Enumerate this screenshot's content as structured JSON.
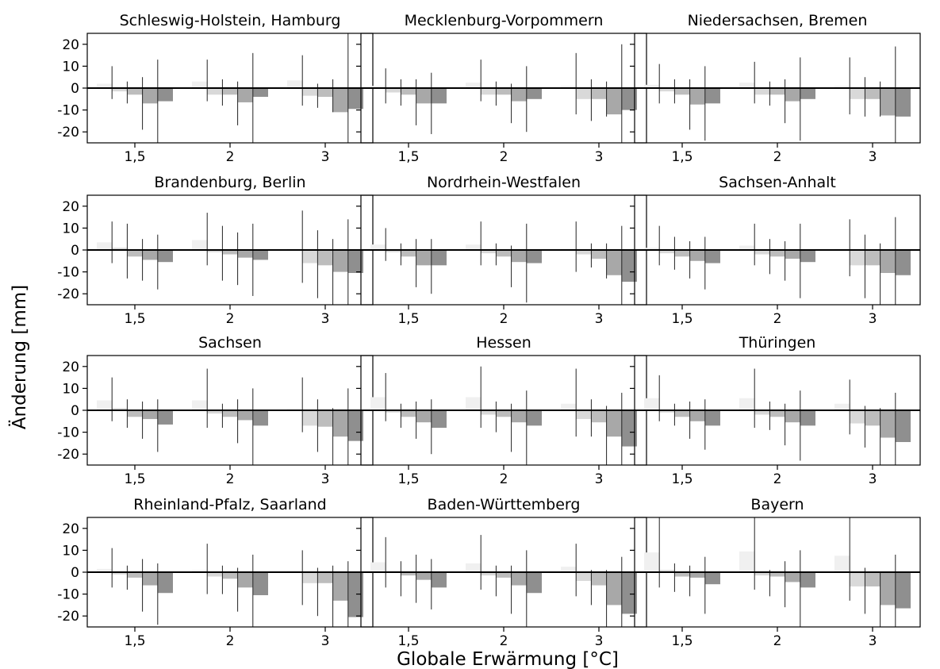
{
  "figure": {
    "xlabel": "Globale Erwärmung [°C]",
    "ylabel": "Änderung [mm]"
  },
  "style": {
    "bar_colors": [
      "#f0f0f0",
      "#d9d9d9",
      "#bdbdbd",
      "#a8a8a8",
      "#8f8f8f"
    ],
    "line_color": "#000000",
    "errorbar_color": "#222222"
  },
  "chart_data": {
    "type": "bar",
    "categories": [
      "1,5",
      "2",
      "3"
    ],
    "yticks": [
      20,
      10,
      0,
      -10,
      -20
    ],
    "ylim": [
      -25,
      25
    ],
    "grid": false,
    "legend": "none",
    "panels": [
      {
        "title": "Schleswig-Holstein, Hamburg",
        "values": [
          [
            2,
            -1.5,
            -3,
            -7,
            -6
          ],
          [
            3,
            -3,
            -3,
            -6.5,
            -4
          ],
          [
            3.5,
            -3.5,
            -4,
            -11,
            -9.5
          ]
        ],
        "errors": [
          [
            [
              -5,
              10
            ],
            [
              -7,
              3
            ],
            [
              -19,
              5
            ],
            [
              -25,
              13
            ]
          ],
          [
            [
              -6,
              13
            ],
            [
              -8,
              4
            ],
            [
              -17,
              3
            ],
            [
              -25,
              16
            ]
          ],
          [
            [
              -8,
              15
            ],
            [
              -9,
              2
            ],
            [
              -11,
              4
            ],
            [
              -25,
              25
            ]
          ]
        ]
      },
      {
        "title": "Mecklenburg-Vorpommern",
        "values": [
          [
            1,
            -2,
            -3,
            -7,
            -7
          ],
          [
            2.5,
            -3,
            -3,
            -6,
            -5
          ],
          [
            1,
            -5,
            -5,
            -12,
            -10
          ]
        ],
        "errors": [
          [
            [
              -7,
              9
            ],
            [
              -8,
              4
            ],
            [
              -17,
              4
            ],
            [
              -21,
              7
            ]
          ],
          [
            [
              -6,
              13
            ],
            [
              -8,
              3
            ],
            [
              -16,
              2
            ],
            [
              -20,
              10
            ]
          ],
          [
            [
              -12,
              16
            ],
            [
              -15,
              4
            ],
            [
              -13,
              3
            ],
            [
              -25,
              20
            ]
          ]
        ]
      },
      {
        "title": "Niedersachsen, Bremen",
        "values": [
          [
            1.5,
            -1.5,
            -3,
            -7.5,
            -7
          ],
          [
            2.5,
            -3,
            -3,
            -6,
            -5
          ],
          [
            1,
            -5,
            -5,
            -12.5,
            -13
          ]
        ],
        "errors": [
          [
            [
              -7,
              11
            ],
            [
              -7,
              4
            ],
            [
              -19,
              4
            ],
            [
              -24,
              10
            ]
          ],
          [
            [
              -7,
              12
            ],
            [
              -8,
              3
            ],
            [
              -16,
              4
            ],
            [
              -24,
              14
            ]
          ],
          [
            [
              -12,
              14
            ],
            [
              -13,
              5
            ],
            [
              -13,
              3
            ],
            [
              -25,
              19
            ]
          ]
        ]
      },
      {
        "title": "Brandenburg, Berlin",
        "values": [
          [
            3.5,
            1,
            -3,
            -4.5,
            -5.5
          ],
          [
            4.5,
            -1,
            -2,
            -3.5,
            -4.5
          ],
          [
            0.5,
            -6,
            -7,
            -10,
            -10.5
          ]
        ],
        "errors": [
          [
            [
              -6,
              13
            ],
            [
              -13,
              12
            ],
            [
              -14,
              5
            ],
            [
              -18,
              7
            ]
          ],
          [
            [
              -7,
              17
            ],
            [
              -14,
              11
            ],
            [
              -16,
              8
            ],
            [
              -21,
              12
            ]
          ],
          [
            [
              -15,
              18
            ],
            [
              -22,
              9
            ],
            [
              -25,
              5
            ],
            [
              -25,
              14
            ]
          ]
        ]
      },
      {
        "title": "Nordrhein-Westfalen",
        "values": [
          [
            2.5,
            -1,
            -3,
            -7,
            -7
          ],
          [
            2.5,
            -1.5,
            -3,
            -5.5,
            -6
          ],
          [
            0.5,
            -2,
            -4,
            -11.5,
            -14.5
          ]
        ],
        "errors": [
          [
            [
              -5,
              10
            ],
            [
              -7,
              3
            ],
            [
              -17,
              5
            ],
            [
              -20,
              5
            ]
          ],
          [
            [
              -7,
              13
            ],
            [
              -7,
              3
            ],
            [
              -17,
              2
            ],
            [
              -24,
              12
            ]
          ],
          [
            [
              -10,
              13
            ],
            [
              -8,
              3
            ],
            [
              -13,
              3
            ],
            [
              -25,
              11
            ]
          ]
        ]
      },
      {
        "title": "Sachsen-Anhalt",
        "values": [
          [
            1,
            -1.5,
            -3,
            -5,
            -6
          ],
          [
            2,
            -2,
            -3,
            -4,
            -5.5
          ],
          [
            0.5,
            -7,
            -7,
            -10.5,
            -11.5
          ]
        ],
        "errors": [
          [
            [
              -7,
              11
            ],
            [
              -9,
              6
            ],
            [
              -13,
              4
            ],
            [
              -18,
              6
            ]
          ],
          [
            [
              -7,
              12
            ],
            [
              -11,
              5
            ],
            [
              -14,
              4
            ],
            [
              -22,
              12
            ]
          ],
          [
            [
              -12,
              14
            ],
            [
              -22,
              7
            ],
            [
              -25,
              3
            ],
            [
              -25,
              15
            ]
          ]
        ]
      },
      {
        "title": "Sachsen",
        "values": [
          [
            4.5,
            1,
            -3,
            -4,
            -6.5
          ],
          [
            4.5,
            -1.5,
            -3,
            -4.5,
            -7
          ],
          [
            0.5,
            -7,
            -7.5,
            -12,
            -14
          ]
        ],
        "errors": [
          [
            [
              -5,
              15
            ],
            [
              -8,
              5
            ],
            [
              -13,
              4
            ],
            [
              -19,
              5
            ]
          ],
          [
            [
              -8,
              19
            ],
            [
              -8,
              3
            ],
            [
              -15,
              5
            ],
            [
              -25,
              10
            ]
          ],
          [
            [
              -10,
              15
            ],
            [
              -19,
              5
            ],
            [
              -25,
              1
            ],
            [
              -25,
              10
            ]
          ]
        ]
      },
      {
        "title": "Hessen",
        "values": [
          [
            6,
            -1,
            -3,
            -5.5,
            -8
          ],
          [
            6,
            -2,
            -3,
            -5.5,
            -7
          ],
          [
            3,
            -4,
            -5.5,
            -12,
            -16.5
          ]
        ],
        "errors": [
          [
            [
              -5,
              17
            ],
            [
              -8,
              3
            ],
            [
              -13,
              4
            ],
            [
              -20,
              5
            ]
          ],
          [
            [
              -8,
              20
            ],
            [
              -10,
              4
            ],
            [
              -19,
              3
            ],
            [
              -25,
              9
            ]
          ],
          [
            [
              -12,
              19
            ],
            [
              -12,
              5
            ],
            [
              -25,
              2
            ],
            [
              -25,
              8
            ]
          ]
        ]
      },
      {
        "title": "Thüringen",
        "values": [
          [
            5.5,
            -1,
            -3,
            -5,
            -7
          ],
          [
            5.5,
            -2,
            -3,
            -5.5,
            -7
          ],
          [
            3,
            -6,
            -7,
            -12.5,
            -14.5
          ]
        ],
        "errors": [
          [
            [
              -5,
              16
            ],
            [
              -7,
              3
            ],
            [
              -13,
              4
            ],
            [
              -18,
              5
            ]
          ],
          [
            [
              -8,
              19
            ],
            [
              -9,
              4
            ],
            [
              -16,
              3
            ],
            [
              -23,
              9
            ]
          ],
          [
            [
              -11,
              14
            ],
            [
              -17,
              2
            ],
            [
              -25,
              1
            ],
            [
              -25,
              8
            ]
          ]
        ]
      },
      {
        "title": "Rheinland-Pfalz, Saarland",
        "values": [
          [
            1.5,
            -1,
            -2.5,
            -6,
            -9.5
          ],
          [
            1,
            -2,
            -3,
            -7,
            -10.5
          ],
          [
            0.5,
            -5,
            -5,
            -13,
            -20.5
          ]
        ],
        "errors": [
          [
            [
              -7,
              11
            ],
            [
              -8,
              3
            ],
            [
              -18,
              6
            ],
            [
              -24,
              4
            ]
          ],
          [
            [
              -10,
              13
            ],
            [
              -10,
              3
            ],
            [
              -18,
              2
            ],
            [
              -25,
              8
            ]
          ],
          [
            [
              -15,
              10
            ],
            [
              -20,
              2
            ],
            [
              -25,
              3
            ],
            [
              -25,
              5
            ]
          ]
        ]
      },
      {
        "title": "Baden-Württemberg",
        "values": [
          [
            4.5,
            0.5,
            -1.5,
            -3.5,
            -7
          ],
          [
            4,
            -1.5,
            -2.5,
            -6,
            -9.5
          ],
          [
            2.5,
            -4,
            -6,
            -15,
            -19
          ]
        ],
        "errors": [
          [
            [
              -7,
              16
            ],
            [
              -11,
              5
            ],
            [
              -14,
              8
            ],
            [
              -17,
              6
            ]
          ],
          [
            [
              -8,
              17
            ],
            [
              -11,
              3
            ],
            [
              -19,
              3
            ],
            [
              -25,
              10
            ]
          ],
          [
            [
              -11,
              13
            ],
            [
              -15,
              1
            ],
            [
              -25,
              1
            ],
            [
              -25,
              7
            ]
          ]
        ]
      },
      {
        "title": "Bayern",
        "values": [
          [
            9,
            1,
            -2,
            -2.5,
            -5.5
          ],
          [
            9.5,
            -1.5,
            -2,
            -4.5,
            -7
          ],
          [
            7.5,
            -6.5,
            -6.5,
            -15,
            -16.5
          ]
        ],
        "errors": [
          [
            [
              -7,
              25
            ],
            [
              -9,
              4
            ],
            [
              -11,
              3
            ],
            [
              -19,
              7
            ]
          ],
          [
            [
              -8,
              25
            ],
            [
              -11,
              1
            ],
            [
              -16,
              5
            ],
            [
              -25,
              10
            ]
          ],
          [
            [
              -13,
              25
            ],
            [
              -19,
              2
            ],
            [
              -25,
              0
            ],
            [
              -25,
              8
            ]
          ]
        ]
      }
    ]
  }
}
